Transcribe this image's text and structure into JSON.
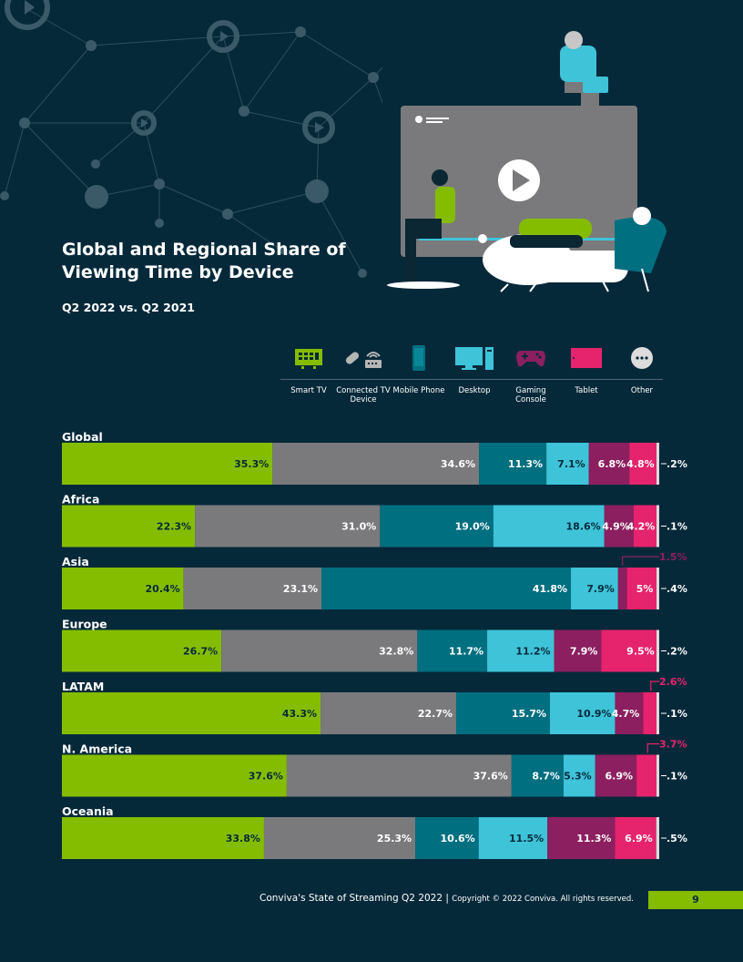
{
  "title": "Global and Regional Share of Viewing Time by Device",
  "subtitle": "Q2 2022 vs. Q2 2021",
  "legend": [
    {
      "label": "Smart TV",
      "icon": "smart-tv-icon"
    },
    {
      "label": "Connected TV Device",
      "icon": "connected-tv-device-icon"
    },
    {
      "label": "Mobile Phone",
      "icon": "mobile-phone-icon"
    },
    {
      "label": "Desktop",
      "icon": "desktop-icon"
    },
    {
      "label": "Gaming Console",
      "icon": "gaming-console-icon"
    },
    {
      "label": "Tablet",
      "icon": "tablet-icon"
    },
    {
      "label": "Other",
      "icon": "other-icon"
    }
  ],
  "footer": {
    "report": "Conviva's State of Streaming Q2 2022",
    "separator": "|",
    "copyright": "Copyright © 2022 Conviva. All rights reserved.",
    "page_number": "9"
  },
  "colors": {
    "background": "#06293a",
    "smart_tv": "#84bd00",
    "connected_tv_device": "#7a7a7c",
    "mobile_phone": "#006f7f",
    "desktop": "#3ec3d9",
    "gaming_console": "#8c1f5f",
    "tablet": "#e6236d",
    "other": "#dcdcdc"
  },
  "chart_data": {
    "type": "bar",
    "orientation": "horizontal",
    "stacked": true,
    "categories": [
      "Global",
      "Africa",
      "Asia",
      "Europe",
      "LATAM",
      "N. America",
      "Oceania"
    ],
    "series": [
      {
        "name": "Smart TV",
        "values": [
          35.3,
          22.3,
          20.4,
          26.7,
          43.3,
          37.6,
          33.8
        ],
        "labels": [
          "35.3%",
          "22.3%",
          "20.4%",
          "26.7%",
          "43.3%",
          "37.6%",
          "33.8%"
        ]
      },
      {
        "name": "Connected TV Device",
        "values": [
          34.6,
          31.0,
          23.1,
          32.8,
          22.7,
          37.6,
          25.3
        ],
        "labels": [
          "34.6%",
          "31.0%",
          "23.1%",
          "32.8%",
          "22.7%",
          "37.6%",
          "25.3%"
        ]
      },
      {
        "name": "Mobile Phone",
        "values": [
          11.3,
          19.0,
          41.8,
          11.7,
          15.7,
          8.7,
          10.6
        ],
        "labels": [
          "11.3%",
          "19.0%",
          "41.8%",
          "11.7%",
          "15.7%",
          "8.7%",
          "10.6%"
        ]
      },
      {
        "name": "Desktop",
        "values": [
          7.1,
          18.6,
          7.9,
          11.2,
          10.9,
          5.3,
          11.5
        ],
        "labels": [
          "7.1%",
          "18.6%",
          "7.9%",
          "11.2%",
          "10.9%",
          "5.3%",
          "11.5%"
        ]
      },
      {
        "name": "Gaming Console",
        "values": [
          6.8,
          4.9,
          1.5,
          7.9,
          4.7,
          6.9,
          11.3
        ],
        "labels": [
          "6.8%",
          "4.9%",
          "1.5%",
          "7.9%",
          "4.7%",
          "6.9%",
          "11.3%"
        ]
      },
      {
        "name": "Tablet",
        "values": [
          4.8,
          4.2,
          5.0,
          9.5,
          2.6,
          3.7,
          6.9
        ],
        "labels": [
          "4.8%",
          "4.2%",
          "5%",
          "9.5%",
          "2.6%",
          "3.7%",
          "6.9%"
        ]
      },
      {
        "name": "Other",
        "values": [
          0.2,
          0.1,
          0.4,
          0.2,
          0.1,
          0.1,
          0.5
        ],
        "labels": [
          ".2%",
          ".1%",
          ".4%",
          ".2%",
          ".1%",
          ".1%",
          ".5%"
        ]
      }
    ],
    "xlim": [
      0,
      100
    ],
    "legend_position": "top-right",
    "grid": false
  }
}
